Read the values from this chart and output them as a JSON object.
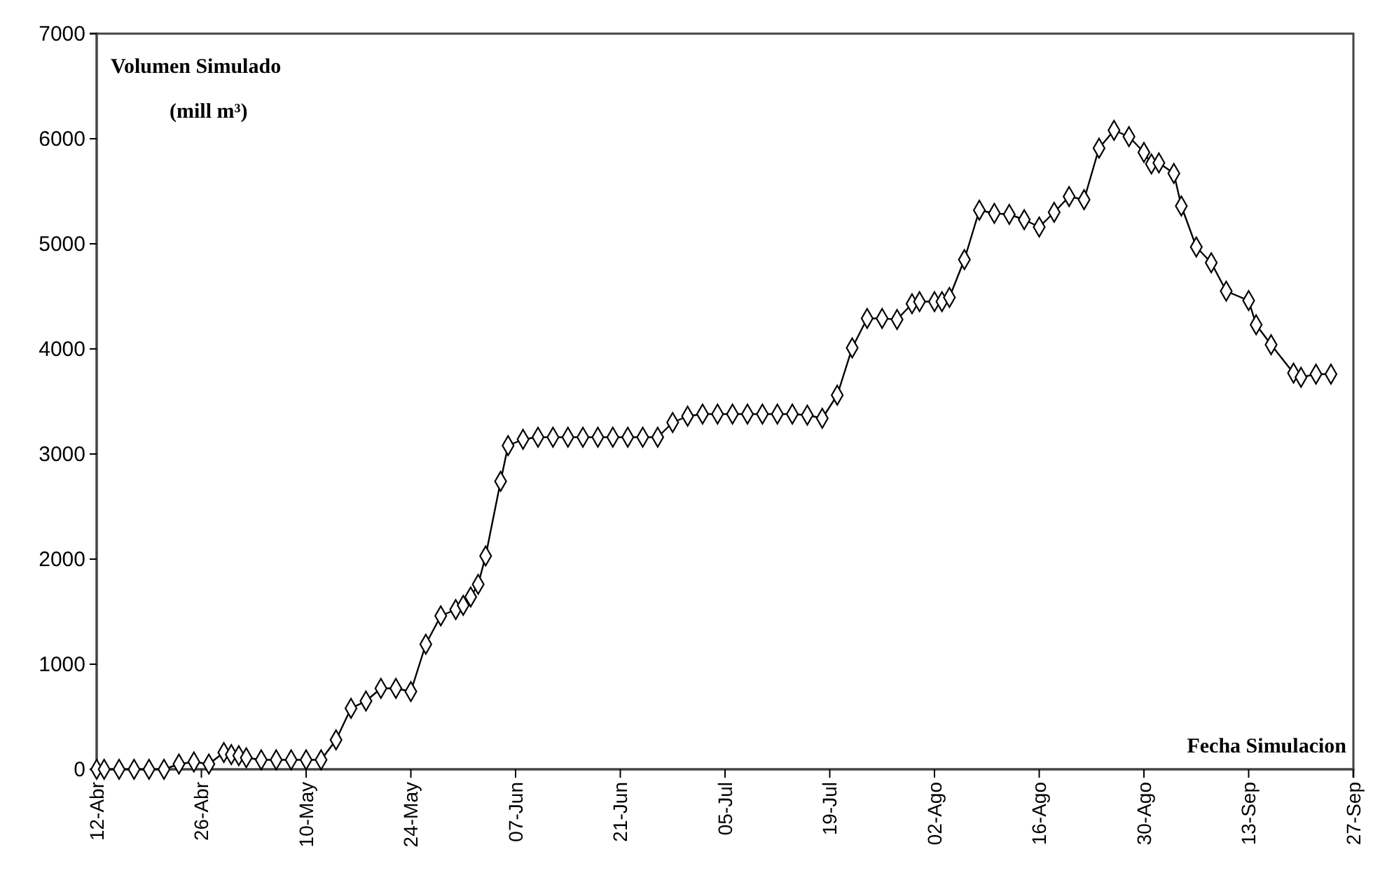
{
  "chart_data": {
    "type": "line",
    "ylabel": "Volumen Simulado (mill m³)",
    "xlabel": "Fecha Simulacion",
    "x": [
      "--04-12",
      "--04-13",
      "--04-15",
      "--04-17",
      "--04-19",
      "--04-21",
      "--04-23",
      "--04-25",
      "--04-27",
      "--04-29",
      "--04-30",
      "--05-01",
      "--05-02",
      "--05-04",
      "--05-06",
      "--05-08",
      "--05-10",
      "--05-12",
      "--05-14",
      "--05-16",
      "--05-18",
      "--05-20",
      "--05-22",
      "--05-24",
      "--05-26",
      "--05-28",
      "--05-30",
      "--05-31",
      "--06-01",
      "--06-02",
      "--06-03",
      "--06-05",
      "--06-06",
      "--06-08",
      "--06-10",
      "--06-12",
      "--06-14",
      "--06-16",
      "--06-18",
      "--06-20",
      "--06-22",
      "--06-24",
      "--06-26",
      "--06-28",
      "--06-30",
      "--07-02",
      "--07-04",
      "--07-06",
      "--07-08",
      "--07-10",
      "--07-12",
      "--07-14",
      "--07-16",
      "--07-18",
      "--07-20",
      "--07-22",
      "--07-24",
      "--07-26",
      "--07-28",
      "--07-30",
      "--07-31",
      "--08-02",
      "--08-03",
      "--08-04",
      "--08-06",
      "--08-08",
      "--08-10",
      "--08-12",
      "--08-14",
      "--08-16",
      "--08-18",
      "--08-20",
      "--08-22",
      "--08-24",
      "--08-26",
      "--08-28",
      "--08-30",
      "--08-31",
      "--09-01",
      "--09-03",
      "--09-04",
      "--09-06",
      "--09-08",
      "--09-10",
      "--09-13",
      "--09-14",
      "--09-16",
      "--09-19",
      "--09-20",
      "--09-22",
      "--09-24"
    ],
    "series": [
      {
        "color": "#000000",
        "values": [
          0,
          0,
          0,
          0,
          0,
          0,
          50,
          70,
          50,
          160,
          140,
          130,
          110,
          90,
          90,
          90,
          90,
          90,
          280,
          580,
          650,
          770,
          770,
          740,
          1190,
          1460,
          1520,
          1560,
          1640,
          1760,
          2030,
          2740,
          3080,
          3140,
          3160,
          3160,
          3160,
          3160,
          3160,
          3160,
          3160,
          3160,
          3160,
          3300,
          3360,
          3380,
          3380,
          3380,
          3380,
          3380,
          3380,
          3380,
          3370,
          3340,
          3560,
          4010,
          4290,
          4290,
          4280,
          4430,
          4450,
          4450,
          4450,
          4490,
          4850,
          5320,
          5290,
          5280,
          5230,
          5160,
          5300,
          5450,
          5420,
          5910,
          6080,
          6020,
          5870,
          5760,
          5770,
          5670,
          5360,
          4970,
          4820,
          4550,
          4460,
          4230,
          4040,
          3770,
          3730,
          3760,
          3760
        ]
      }
    ],
    "xlim": [
      "--04-12",
      "--09-27"
    ],
    "xticks": [
      {
        "value": "--04-12",
        "label": "12-Abr"
      },
      {
        "value": "--04-26",
        "label": "26-Abr"
      },
      {
        "value": "--05-10",
        "label": "10-May"
      },
      {
        "value": "--05-24",
        "label": "24-May"
      },
      {
        "value": "--06-07",
        "label": "07-Jun"
      },
      {
        "value": "--06-21",
        "label": "21-Jun"
      },
      {
        "value": "--07-05",
        "label": "05-Jul"
      },
      {
        "value": "--07-19",
        "label": "19-Jul"
      },
      {
        "value": "--08-02",
        "label": "02-Ago"
      },
      {
        "value": "--08-16",
        "label": "16-Ago"
      },
      {
        "value": "--08-30",
        "label": "30-Ago"
      },
      {
        "value": "--09-13",
        "label": "13-Sep"
      },
      {
        "value": "--09-27",
        "label": "27-Sep"
      }
    ],
    "ylim": [
      0,
      7000
    ],
    "yticks": [
      0,
      1000,
      2000,
      3000,
      4000,
      5000,
      6000,
      7000
    ],
    "grid": false,
    "marker": "diamond",
    "line_style": "solid"
  }
}
